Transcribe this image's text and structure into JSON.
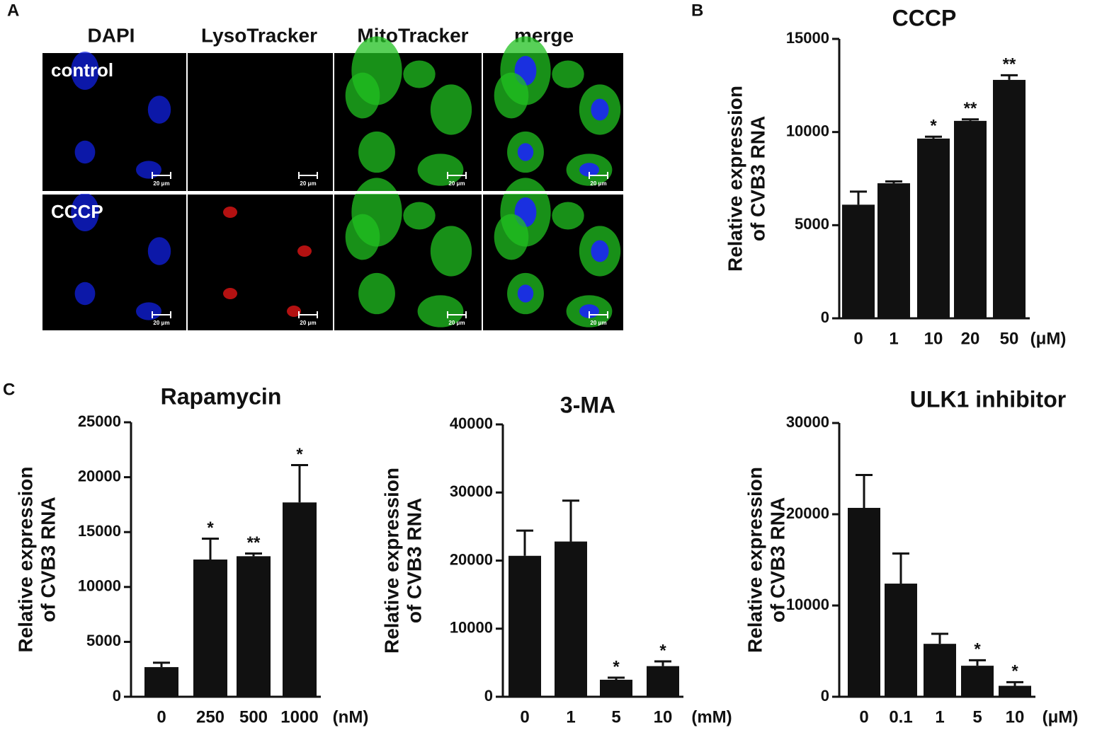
{
  "panels": {
    "a": "A",
    "b": "B",
    "c": "C"
  },
  "microscopy": {
    "columns": [
      "DAPI",
      "LysoTracker",
      "MitoTracker",
      "merge"
    ],
    "rows": [
      "control",
      "CCCP"
    ],
    "scale_bar": "20 μm"
  },
  "chart_data": [
    {
      "type": "bar",
      "title": "CCCP",
      "ylabel": [
        "Relative expression",
        "of CVB3 RNA"
      ],
      "unit": "(μM)",
      "color": "#111111",
      "categories": [
        "0",
        "1",
        "10",
        "20",
        "50"
      ],
      "values": [
        6100,
        7250,
        9650,
        10600,
        12800
      ],
      "errors": [
        700,
        100,
        100,
        80,
        250
      ],
      "annotations": [
        null,
        null,
        "*",
        "**",
        "**"
      ],
      "ylim": [
        0,
        15000
      ],
      "yticks": [
        0,
        5000,
        10000,
        15000
      ]
    },
    {
      "type": "bar",
      "title": "Rapamycin",
      "ylabel": [
        "Relative expression",
        "of CVB3 RNA"
      ],
      "unit": "(nM)",
      "color": "#111111",
      "categories": [
        "0",
        "250",
        "500",
        "1000"
      ],
      "values": [
        2700,
        12500,
        12800,
        17700
      ],
      "errors": [
        400,
        1900,
        250,
        3400
      ],
      "annotations": [
        null,
        "*",
        "**",
        "*"
      ],
      "ylim": [
        0,
        25000
      ],
      "yticks": [
        0,
        5000,
        10000,
        15000,
        20000,
        25000
      ]
    },
    {
      "type": "bar",
      "title": "3-MA",
      "ylabel": [
        "Relative expression",
        "of CVB3 RNA"
      ],
      "unit": "(mM)",
      "color": "#111111",
      "categories": [
        "0",
        "1",
        "5",
        "10"
      ],
      "values": [
        20700,
        22800,
        2500,
        4500
      ],
      "errors": [
        3700,
        6000,
        300,
        700
      ],
      "annotations": [
        null,
        null,
        "*",
        "*"
      ],
      "ylim": [
        0,
        40000
      ],
      "yticks": [
        0,
        10000,
        20000,
        30000,
        40000
      ]
    },
    {
      "type": "bar",
      "title": "ULK1 inhibitor",
      "ylabel": [
        "Relative expression",
        "of CVB3 RNA"
      ],
      "unit": "(μM)",
      "color": "#111111",
      "categories": [
        "0",
        "0.1",
        "1",
        "5",
        "10"
      ],
      "values": [
        20700,
        12400,
        5800,
        3400,
        1200
      ],
      "errors": [
        3600,
        3300,
        1100,
        600,
        400
      ],
      "annotations": [
        null,
        null,
        null,
        "*",
        "*"
      ],
      "ylim": [
        0,
        30000
      ],
      "yticks": [
        0,
        10000,
        20000,
        30000
      ]
    }
  ]
}
